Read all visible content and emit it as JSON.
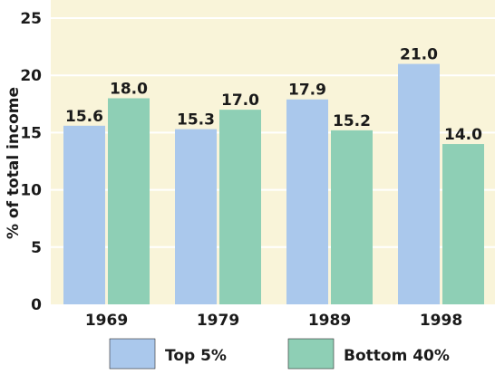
{
  "chart_data": {
    "type": "bar",
    "categories": [
      "1969",
      "1979",
      "1989",
      "1998"
    ],
    "series": [
      {
        "name": "Top 5%",
        "values": [
          15.6,
          15.3,
          17.9,
          21.0
        ],
        "color": "#aac8ec"
      },
      {
        "name": "Bottom 40%",
        "values": [
          18.0,
          17.0,
          15.2,
          14.0
        ],
        "color": "#8ecfb5"
      }
    ],
    "data_labels": [
      [
        "15.6",
        "15.3",
        "17.9",
        "21.0"
      ],
      [
        "18.0",
        "17.0",
        "15.2",
        "14.0"
      ]
    ],
    "ylabel": "% of total income",
    "xlabel": "",
    "ylim": [
      0,
      25
    ],
    "yticks": [
      "0",
      "5",
      "10",
      "15",
      "20",
      "25"
    ],
    "grid": true,
    "legend_position": "bottom",
    "plot_background": "#f9f4d9",
    "grid_color": "#ffffff"
  }
}
